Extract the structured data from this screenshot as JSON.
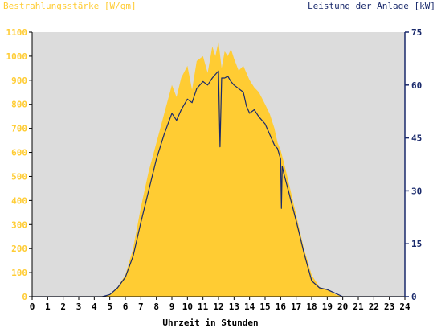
{
  "chart_data": {
    "type": "area",
    "title": "",
    "xlabel": "Uhrzeit in Stunden",
    "ylabel_left": "Bestrahlungsstärke [W/qm]",
    "ylabel_right": "Leistung der Anlage [kW]",
    "xlim": [
      0,
      24
    ],
    "ylim_left": [
      0,
      1100
    ],
    "ylim_right": [
      0,
      75
    ],
    "x_ticks": [
      "0",
      "1",
      "2",
      "3",
      "4",
      "5",
      "6",
      "7",
      "8",
      "9",
      "10",
      "11",
      "12",
      "13",
      "14",
      "15",
      "16",
      "17",
      "18",
      "19",
      "20",
      "21",
      "22",
      "23",
      "24"
    ],
    "y_ticks_left": [
      "0",
      "100",
      "200",
      "300",
      "400",
      "500",
      "600",
      "700",
      "800",
      "900",
      "1000",
      "1100"
    ],
    "y_ticks_right": [
      "0",
      "15",
      "30",
      "45",
      "60",
      "75"
    ],
    "grid": false,
    "colors": {
      "left_axis": "#ffcc33",
      "right_axis": "#1a2a6c",
      "irradiance_fill": "#ffcc33",
      "power_line": "#1a2a6c",
      "plot_background": "#dcdcdc"
    },
    "series": [
      {
        "kind": "area",
        "axis": "left",
        "x": [
          0,
          4.5,
          5,
          5.5,
          6,
          6.5,
          7,
          7.5,
          8,
          8.5,
          9,
          9.3,
          9.6,
          10,
          10.3,
          10.6,
          11,
          11.3,
          11.6,
          11.8,
          12,
          12.2,
          12.4,
          12.6,
          12.8,
          13,
          13.3,
          13.6,
          14,
          14.3,
          14.6,
          15,
          15.3,
          15.6,
          15.8,
          16,
          16.2,
          16.5,
          17,
          17.5,
          18,
          18.5,
          19,
          19.5,
          20,
          20.5,
          24
        ],
        "y": [
          0,
          0,
          10,
          40,
          90,
          200,
          370,
          520,
          640,
          760,
          880,
          830,
          910,
          960,
          860,
          980,
          1000,
          930,
          1040,
          1000,
          1060,
          950,
          1020,
          1000,
          1030,
          990,
          940,
          960,
          900,
          870,
          850,
          800,
          760,
          700,
          640,
          610,
          560,
          480,
          340,
          200,
          90,
          40,
          30,
          10,
          0,
          0,
          0
        ]
      },
      {
        "kind": "line",
        "axis": "right",
        "x": [
          0,
          4.5,
          5,
          5.5,
          6,
          6.5,
          7,
          7.5,
          8,
          8.5,
          9,
          9.3,
          9.6,
          10,
          10.3,
          10.6,
          11,
          11.3,
          11.6,
          11.8,
          12,
          12.1,
          12.2,
          12.4,
          12.6,
          12.8,
          13,
          13.3,
          13.6,
          13.8,
          14,
          14.3,
          14.6,
          15,
          15.3,
          15.6,
          15.8,
          16,
          16.05,
          16.1,
          16.2,
          16.5,
          17,
          17.5,
          18,
          18.5,
          19,
          19.5,
          20,
          20.5,
          24
        ],
        "y": [
          0,
          0,
          0.6,
          2.5,
          5.5,
          11.5,
          21,
          30,
          39,
          46,
          52,
          50,
          53,
          56,
          55,
          59,
          61,
          60,
          62,
          63,
          64,
          42.5,
          62,
          62,
          62.5,
          61,
          60,
          59,
          58,
          54,
          52,
          53,
          51,
          49,
          46,
          43,
          42,
          39,
          25,
          37,
          35,
          30,
          21.5,
          12.5,
          4.5,
          2.5,
          2,
          1,
          0,
          0,
          0
        ]
      }
    ]
  }
}
